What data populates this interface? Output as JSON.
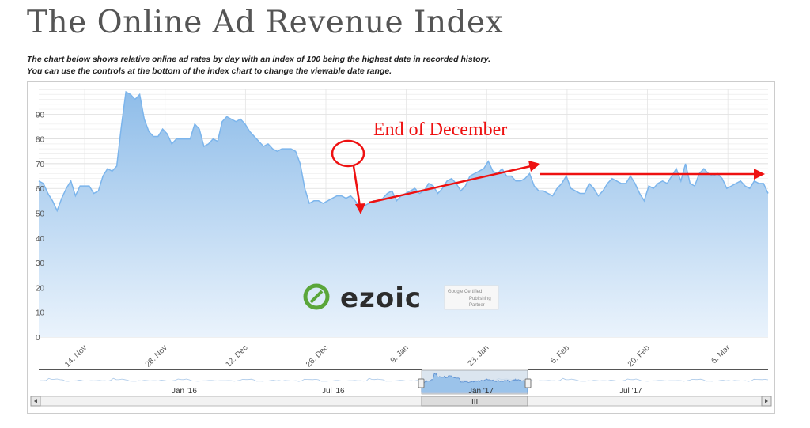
{
  "page": {
    "title": "The Online Ad Revenue Index",
    "description_line1": "The chart below shows relative online ad rates by day with an index of 100 being the highest date in recorded history.",
    "description_line2": "You can use the controls at the bottom of the index chart to change the viewable date range."
  },
  "watermark": {
    "brand": "ezoic",
    "badge_lines": [
      "Google Certified",
      "Publishing",
      "Partner"
    ]
  },
  "annotation": {
    "text": "End of December",
    "color": "#ee1111"
  },
  "navigator": {
    "labels": [
      "Jan '16",
      "Jul '16",
      "Jan '17",
      "Jul '17"
    ],
    "scrollbar_grip": "III"
  },
  "colors": {
    "series": "#7cb5ec",
    "fill_top": "#8fbde9",
    "fill_bottom": "#eaf3fc",
    "navigator_mask": "#cfdcea"
  },
  "chart_data": {
    "type": "area",
    "title": "",
    "xlabel": "",
    "ylabel": "",
    "ylim": [
      0,
      100
    ],
    "grid": true,
    "y_ticks": [
      0,
      10,
      20,
      30,
      40,
      50,
      60,
      70,
      80,
      90
    ],
    "x_tick_labels": [
      "14. Nov",
      "28. Nov",
      "12. Dec",
      "26. Dec",
      "9. Jan",
      "23. Jan",
      "6. Feb",
      "20. Feb",
      "6. Mar"
    ],
    "x_start": "2016-11-06",
    "x_end": "2017-03-13",
    "series": [
      {
        "values": [
          63,
          62,
          58,
          55,
          51,
          56,
          60,
          63,
          57,
          61,
          61,
          61,
          58,
          59,
          65,
          68,
          67,
          69,
          85,
          99,
          98,
          96,
          98,
          88,
          83,
          81,
          81,
          84,
          82,
          78,
          80,
          80,
          80,
          80,
          86,
          84,
          77,
          78,
          80,
          79,
          87,
          89,
          88,
          87,
          88,
          86,
          83,
          81,
          79,
          77,
          78,
          76,
          75,
          76,
          76,
          76,
          75,
          70,
          60,
          54,
          55,
          55,
          54,
          55,
          56,
          57,
          57,
          56,
          57,
          55,
          52,
          53,
          54,
          55,
          55,
          56,
          58,
          59,
          55,
          57,
          58,
          59,
          60,
          58,
          59,
          62,
          61,
          58,
          60,
          63,
          64,
          62,
          59,
          61,
          65,
          66,
          67,
          68,
          71,
          67,
          66,
          68,
          65,
          65,
          63,
          63,
          64,
          66,
          61,
          59,
          59,
          58,
          57,
          60,
          62,
          65,
          60,
          59,
          58,
          58,
          62,
          60,
          57,
          59,
          62,
          64,
          63,
          62,
          62,
          65,
          62,
          58,
          55,
          61,
          60,
          62,
          63,
          62,
          65,
          68,
          63,
          70,
          62,
          61,
          66,
          68,
          66,
          65,
          66,
          64,
          60,
          61,
          62,
          63,
          61,
          60,
          63,
          62,
          62,
          58
        ]
      }
    ]
  }
}
